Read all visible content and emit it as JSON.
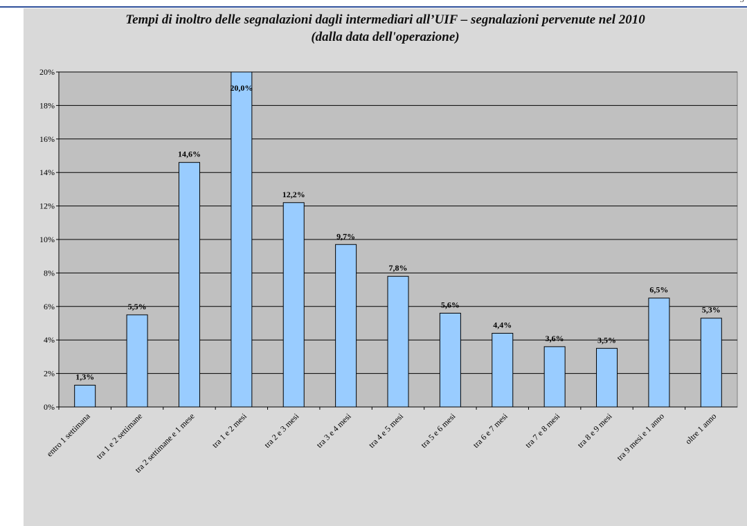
{
  "page_mark": "5",
  "chart_data": {
    "type": "bar",
    "title": "Tempi di inoltro delle segnalazioni dagli intermediari all’UIF – segnalazioni pervenute nel 2010",
    "subtitle": "(dalla data dell'operazione)",
    "xlabel": "",
    "ylabel": "",
    "ylim": [
      0,
      20
    ],
    "yticks": [
      "0%",
      "2%",
      "4%",
      "6%",
      "8%",
      "10%",
      "12%",
      "14%",
      "16%",
      "18%",
      "20%"
    ],
    "grid": true,
    "legend": "none",
    "categories": [
      "entro 1 settimana",
      "tra 1 e 2 settimane",
      "tra 2 settimane e 1 mese",
      "tra 1 e 2 mesi",
      "tra 2 e 3 mesi",
      "tra 3 e 4 mesi",
      "tra 4 e 5 mesi",
      "tra 5 e 6 mesi",
      "tra 6 e 7 mesi",
      "tra 7 e 8 mesi",
      "tra 8 e 9 mesi",
      "tra 9 mesi e 1 anno",
      "oltre 1 anno"
    ],
    "values": [
      1.3,
      5.5,
      14.6,
      20.0,
      12.2,
      9.7,
      7.8,
      5.6,
      4.4,
      3.6,
      3.5,
      6.5,
      5.3
    ],
    "data_labels": [
      "1,3%",
      "5,5%",
      "14,6%",
      "20,0%",
      "12,2%",
      "9,7%",
      "7,8%",
      "5,6%",
      "4,4%",
      "3,6%",
      "3,5%",
      "6,5%",
      "5,3%"
    ],
    "colors": {
      "bar_fill": "#99ccff",
      "plot_bg": "#c0c0c0",
      "panel_bg": "#d9d9d9",
      "grid": "#000000",
      "rule": "#2d4f9a"
    }
  }
}
